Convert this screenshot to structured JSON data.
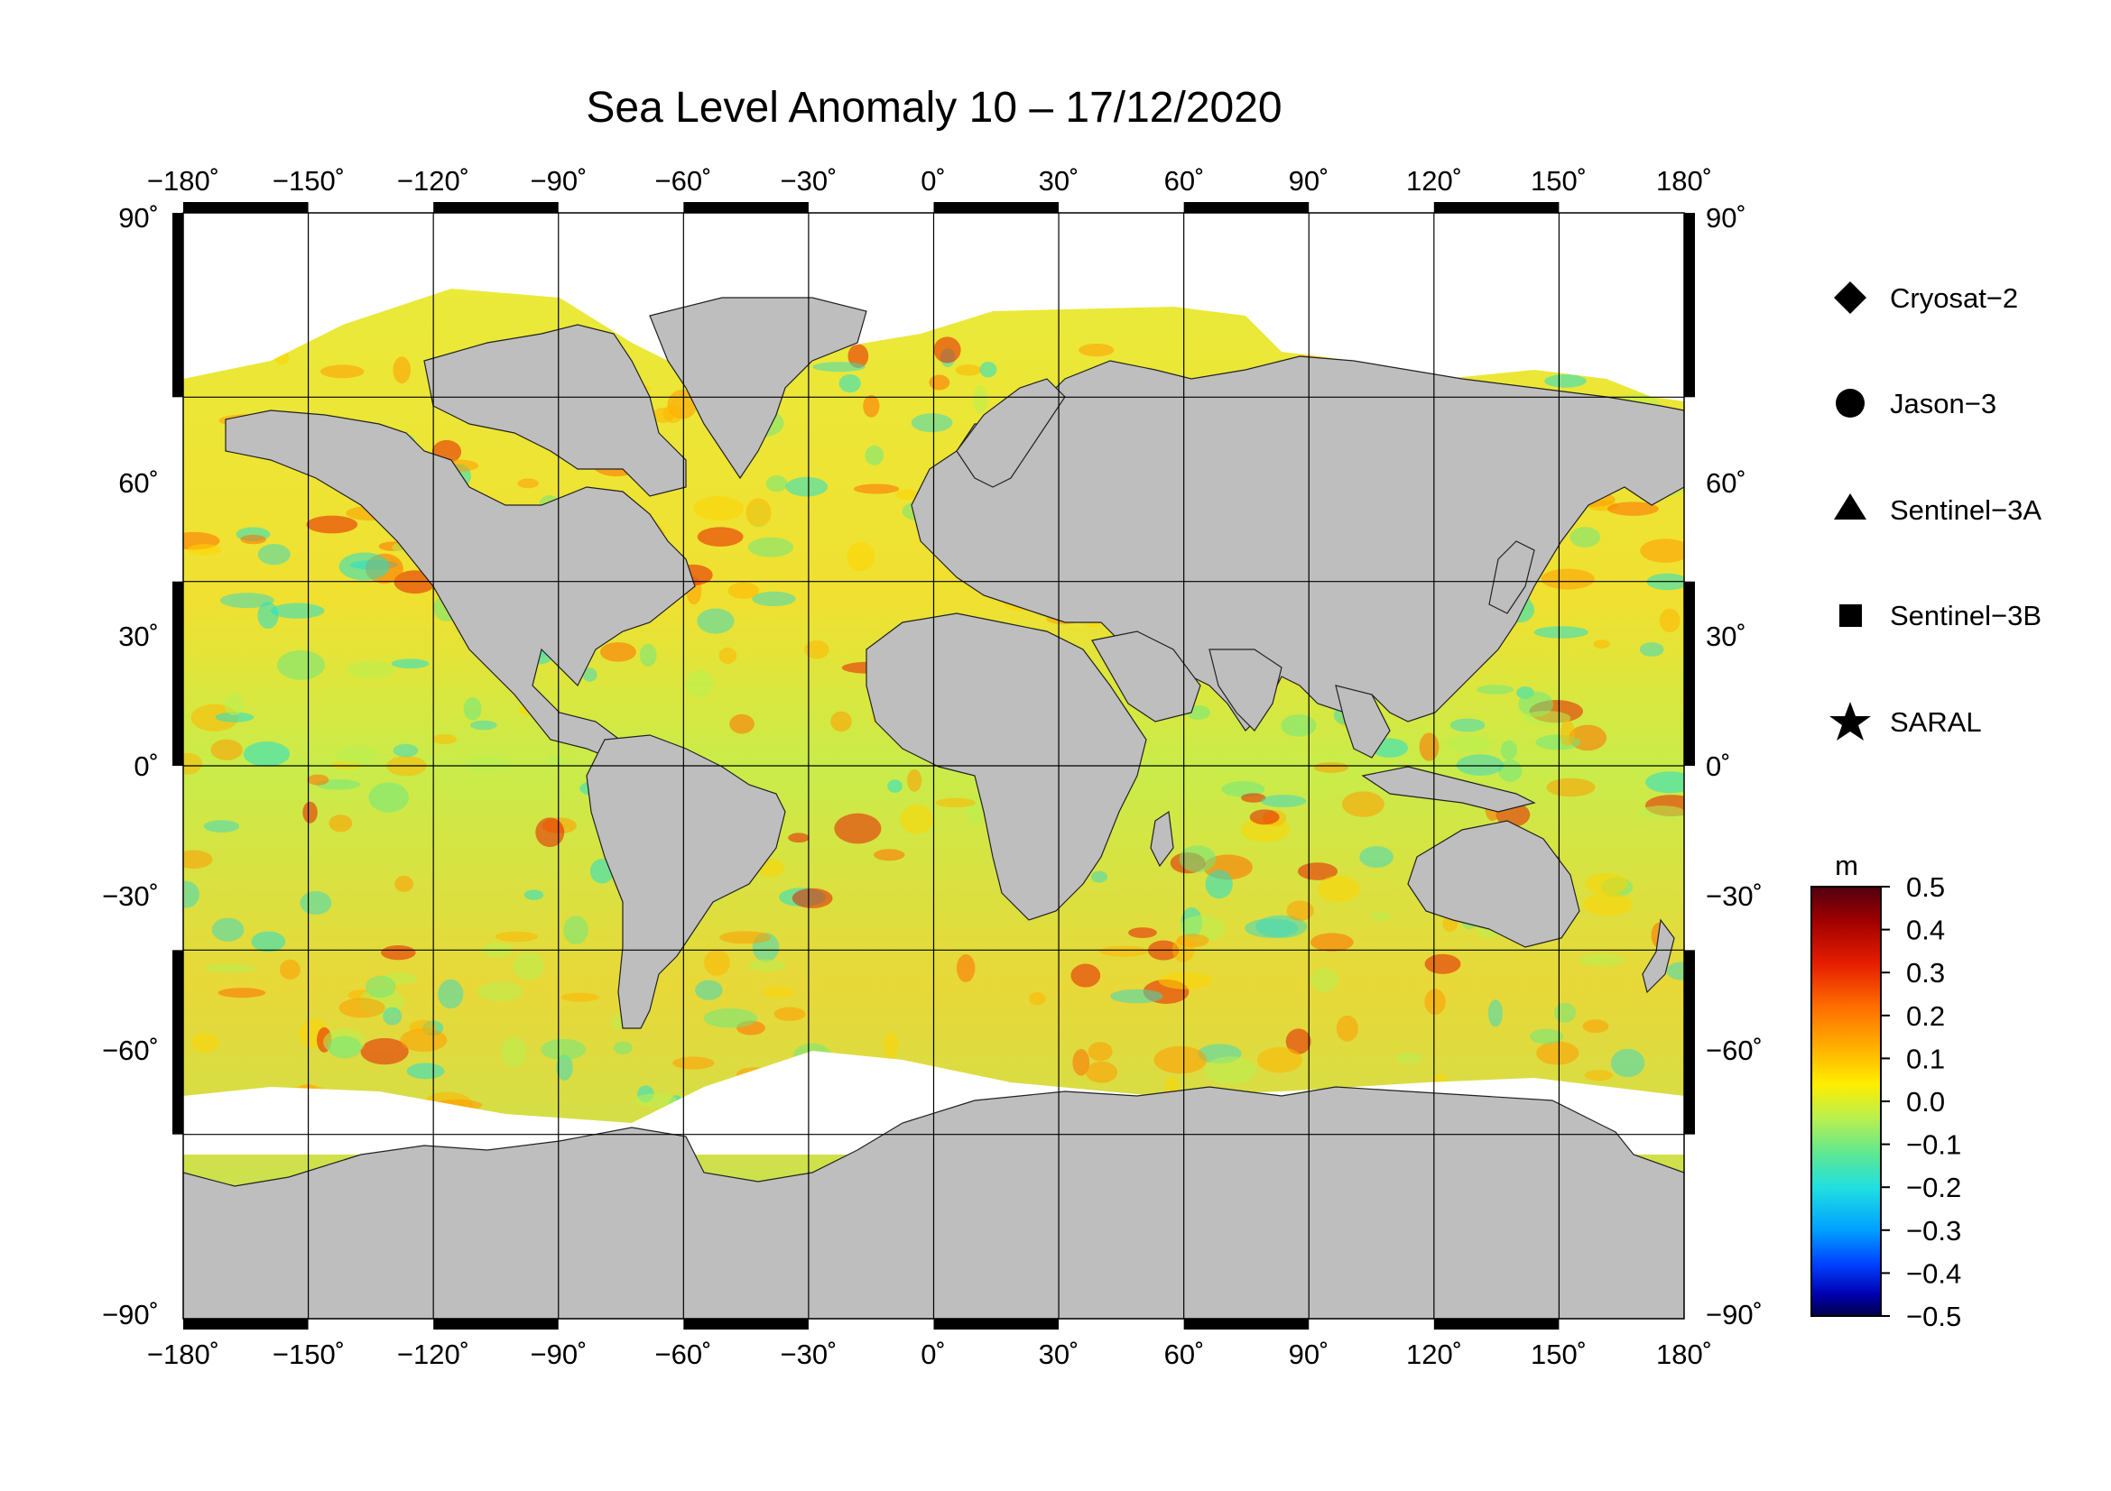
{
  "title": "Sea Level Anomaly 10 – 17/12/2020",
  "map": {
    "projection": "equirectangular",
    "lon_ticks": [
      "−180˚",
      "−150˚",
      "−120˚",
      "−90˚",
      "−60˚",
      "−30˚",
      "0˚",
      "30˚",
      "60˚",
      "90˚",
      "120˚",
      "150˚",
      "180˚"
    ],
    "lat_ticks_left": [
      "90˚",
      "60˚",
      "30˚",
      "0˚",
      "−30˚",
      "−60˚",
      "−90˚"
    ],
    "lat_ticks_right": [
      "90˚",
      "60˚",
      "30˚",
      "0˚",
      "−30˚",
      "−60˚",
      "−90˚"
    ],
    "lon_range": [
      -180,
      180
    ],
    "lat_range": [
      -90,
      90
    ],
    "grid": true,
    "land_color": "#bebebe",
    "no_data_color": "#ffffff"
  },
  "legend": {
    "placement": "right",
    "items": [
      {
        "label": "Cryosat−2",
        "symbol": "diamond"
      },
      {
        "label": "Jason−3",
        "symbol": "circle"
      },
      {
        "label": "Sentinel−3A",
        "symbol": "triangle"
      },
      {
        "label": "Sentinel−3B",
        "symbol": "square"
      },
      {
        "label": "SARAL",
        "symbol": "star"
      }
    ]
  },
  "colorbar": {
    "unit": "m",
    "range": [
      -0.5,
      0.5
    ],
    "tick_labels": [
      "0.5",
      "0.4",
      "0.3",
      "0.2",
      "0.1",
      "0.0",
      "−0.1",
      "−0.2",
      "−0.3",
      "−0.4",
      "−0.5"
    ],
    "colors": [
      "#5a0014",
      "#a00000",
      "#e61e00",
      "#ff6e00",
      "#ffb400",
      "#ffee00",
      "#c8f040",
      "#70e880",
      "#20e0d0",
      "#00a0ff",
      "#0040ff",
      "#0000b0",
      "#000050"
    ]
  }
}
